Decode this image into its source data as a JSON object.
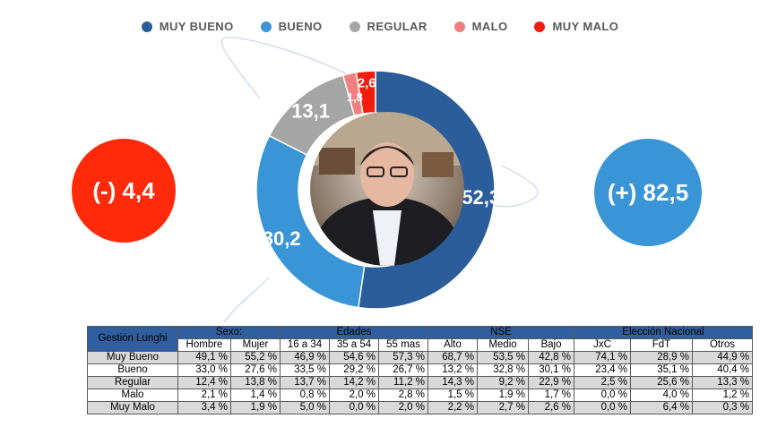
{
  "legend": [
    {
      "label": "MUY BUENO",
      "color": "#2a5d99"
    },
    {
      "label": "BUENO",
      "color": "#3a95d6"
    },
    {
      "label": "REGULAR",
      "color": "#a5a5a5"
    },
    {
      "label": "MALO",
      "color": "#f08080"
    },
    {
      "label": "MUY MALO",
      "color": "#f21c0f"
    }
  ],
  "bubbles": {
    "negative": "(-) 4,4",
    "positive": "(+) 82,5"
  },
  "chart_data": {
    "type": "pie",
    "categories": [
      "MUY BUENO",
      "BUENO",
      "REGULAR",
      "MALO",
      "MUY MALO"
    ],
    "values": [
      52.3,
      30.2,
      13.1,
      1.8,
      2.6
    ],
    "labels": [
      "52,3",
      "30,2",
      "13,1",
      "1,8",
      "2,6"
    ],
    "colors": [
      "#2a5d99",
      "#3a95d6",
      "#a5a5a5",
      "#f08080",
      "#f21c0f"
    ],
    "legend_position": "top"
  },
  "table": {
    "corner": "Gestión Lunghi",
    "groups": [
      {
        "label": "Sexo:",
        "span": 2
      },
      {
        "label": "Edades",
        "span": 3
      },
      {
        "label": "NSE",
        "span": 3
      },
      {
        "label": "Elección Nacional",
        "span": 3
      }
    ],
    "columns": [
      "Hombre",
      "Mujer",
      "16 a 34",
      "35 a 54",
      "55 mas",
      "Alto",
      "Medio",
      "Bajo",
      "JxC",
      "FdT",
      "Otros"
    ],
    "rows": [
      {
        "label": "Muy Bueno",
        "values": [
          "49,1 %",
          "55,2 %",
          "46,9 %",
          "54,6 %",
          "57,3 %",
          "68,7 %",
          "53,5 %",
          "42,8 %",
          "74,1 %",
          "28,9 %",
          "44,9 %"
        ]
      },
      {
        "label": "Bueno",
        "values": [
          "33,0 %",
          "27,6 %",
          "33,5 %",
          "29,2 %",
          "26,7 %",
          "13,2 %",
          "32,8 %",
          "30,1 %",
          "23,4 %",
          "35,1 %",
          "40,4 %"
        ]
      },
      {
        "label": "Regular",
        "values": [
          "12,4 %",
          "13,8 %",
          "13,7 %",
          "14,2 %",
          "11,2 %",
          "14,3 %",
          "9,2 %",
          "22,9 %",
          "2,5 %",
          "25,6 %",
          "13,3 %"
        ]
      },
      {
        "label": "Malo",
        "values": [
          "2,1 %",
          "1,4 %",
          "0,8 %",
          "2,0 %",
          "2,8 %",
          "1,5 %",
          "1,9 %",
          "1,7 %",
          "0,0 %",
          "4,0 %",
          "1,2 %"
        ]
      },
      {
        "label": "Muy Malo",
        "values": [
          "3,4 %",
          "1,9 %",
          "5,0 %",
          "0,0 %",
          "2,0 %",
          "2,2 %",
          "2,7 %",
          "2,6 %",
          "0,0 %",
          "6,4 %",
          "0,3 %"
        ]
      }
    ]
  }
}
